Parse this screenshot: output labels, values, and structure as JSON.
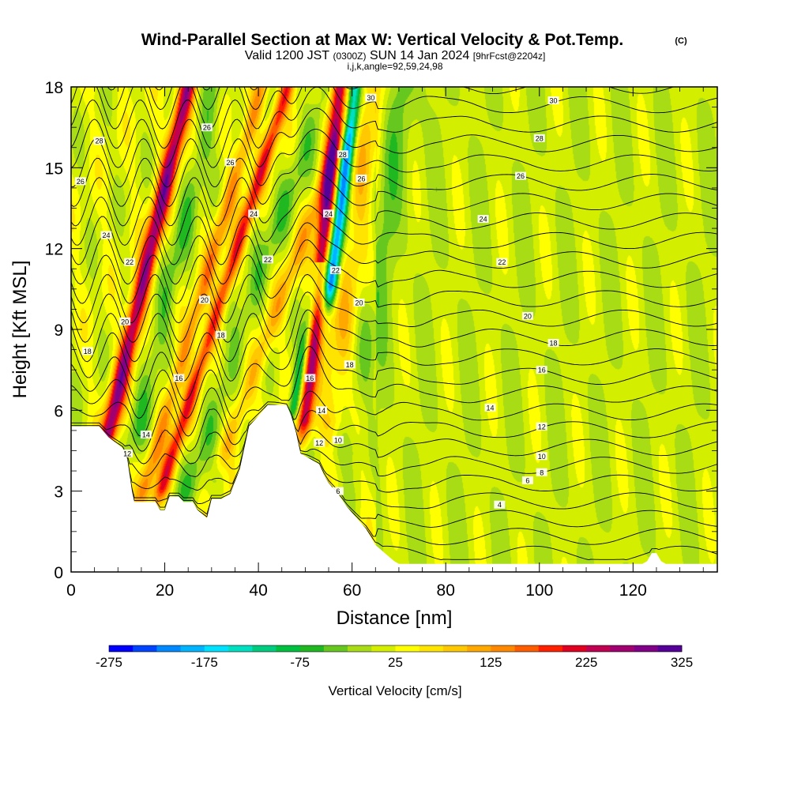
{
  "title": {
    "main": "Wind-Parallel Section at Max W: Vertical Velocity & Pot.Temp.",
    "copyright": "(C)",
    "valid_prefix": "Valid 1200 JST",
    "valid_zulu": "(0300Z)",
    "valid_date": "SUN 14 Jan 2024",
    "forecast_note": "[9hrFcst@2204z]",
    "section_info": "i,j,k,angle=92,59,24,98"
  },
  "chart_data": {
    "type": "heatmap",
    "xlabel": "Distance [nm]",
    "ylabel": "Height [Kft MSL]",
    "xlim": [
      0,
      138
    ],
    "ylim": [
      0,
      18
    ],
    "x_ticks": [
      0,
      20,
      40,
      60,
      80,
      100,
      120
    ],
    "y_ticks": [
      0,
      3,
      6,
      9,
      12,
      15,
      18
    ],
    "x_tick_labels": [
      "0",
      "20",
      "40",
      "60",
      "80",
      "100",
      "120"
    ],
    "y_tick_labels": [
      "0",
      "3",
      "6",
      "9",
      "12",
      "15",
      "18"
    ],
    "colorbar": {
      "title": "Vertical Velocity [cm/s]",
      "min": -275,
      "max": 325,
      "step": 25,
      "tick_values": [
        -275,
        -175,
        -75,
        25,
        125,
        225,
        325
      ],
      "tick_labels": [
        "-275",
        "-175",
        "-75",
        "25",
        "125",
        "225",
        "325"
      ],
      "colors": [
        "#0000ff",
        "#0044ff",
        "#0088ff",
        "#00b4ff",
        "#00e0ff",
        "#00e0c0",
        "#00cc80",
        "#00c040",
        "#20b820",
        "#66c81e",
        "#a8dc14",
        "#d4ee00",
        "#ffff00",
        "#ffe400",
        "#ffc800",
        "#ffa800",
        "#ff8800",
        "#ff5c00",
        "#ff2000",
        "#e00020",
        "#c00050",
        "#a00070",
        "#800088",
        "#550099"
      ]
    },
    "theta_contour_labels": [
      {
        "x": 6,
        "y": 16.0,
        "text": "28"
      },
      {
        "x": 2,
        "y": 14.5,
        "text": "26"
      },
      {
        "x": 7.5,
        "y": 12.5,
        "text": "24"
      },
      {
        "x": 12.5,
        "y": 11.5,
        "text": "22"
      },
      {
        "x": 11.5,
        "y": 9.3,
        "text": "20"
      },
      {
        "x": 3.5,
        "y": 8.2,
        "text": "18"
      },
      {
        "x": 16,
        "y": 5.1,
        "text": "14"
      },
      {
        "x": 12,
        "y": 4.4,
        "text": "12"
      },
      {
        "x": 29,
        "y": 16.5,
        "text": "26"
      },
      {
        "x": 34,
        "y": 15.2,
        "text": "26"
      },
      {
        "x": 39,
        "y": 13.3,
        "text": "24"
      },
      {
        "x": 42,
        "y": 11.6,
        "text": "22"
      },
      {
        "x": 28.5,
        "y": 10.1,
        "text": "20"
      },
      {
        "x": 32,
        "y": 8.8,
        "text": "18"
      },
      {
        "x": 23,
        "y": 7.2,
        "text": "16"
      },
      {
        "x": 64,
        "y": 17.6,
        "text": "30"
      },
      {
        "x": 58,
        "y": 15.5,
        "text": "28"
      },
      {
        "x": 62,
        "y": 14.6,
        "text": "26"
      },
      {
        "x": 55,
        "y": 13.3,
        "text": "24"
      },
      {
        "x": 56.5,
        "y": 11.2,
        "text": "22"
      },
      {
        "x": 61.5,
        "y": 10.0,
        "text": "20"
      },
      {
        "x": 59.5,
        "y": 7.7,
        "text": "18"
      },
      {
        "x": 51,
        "y": 7.2,
        "text": "16"
      },
      {
        "x": 53.5,
        "y": 6.0,
        "text": "14"
      },
      {
        "x": 53,
        "y": 4.8,
        "text": "12"
      },
      {
        "x": 57,
        "y": 4.9,
        "text": "10"
      },
      {
        "x": 57,
        "y": 3.0,
        "text": "6"
      },
      {
        "x": 103,
        "y": 17.5,
        "text": "30"
      },
      {
        "x": 100,
        "y": 16.1,
        "text": "28"
      },
      {
        "x": 96,
        "y": 14.7,
        "text": "26"
      },
      {
        "x": 88,
        "y": 13.1,
        "text": "24"
      },
      {
        "x": 92,
        "y": 11.5,
        "text": "22"
      },
      {
        "x": 97.5,
        "y": 9.5,
        "text": "20"
      },
      {
        "x": 103,
        "y": 8.5,
        "text": "18"
      },
      {
        "x": 100.5,
        "y": 7.5,
        "text": "16"
      },
      {
        "x": 89.5,
        "y": 6.1,
        "text": "14"
      },
      {
        "x": 100.5,
        "y": 5.4,
        "text": "12"
      },
      {
        "x": 100.5,
        "y": 4.3,
        "text": "10"
      },
      {
        "x": 100.5,
        "y": 3.7,
        "text": "8"
      },
      {
        "x": 97.5,
        "y": 3.4,
        "text": "6"
      },
      {
        "x": 91.5,
        "y": 2.5,
        "text": "4"
      }
    ]
  }
}
